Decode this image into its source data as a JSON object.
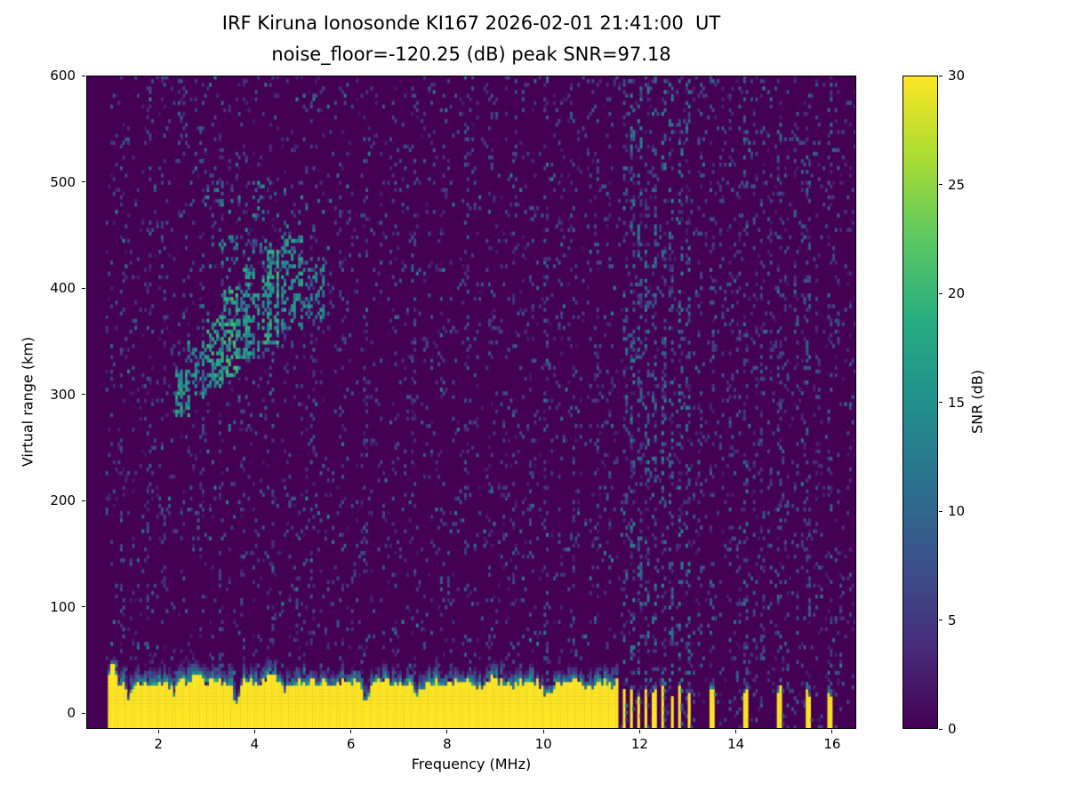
{
  "chart_data": {
    "type": "heatmap",
    "title": "IRF Kiruna Ionosonde KI167 2026-02-01 21:41:00  UT",
    "subtitle": "noise_floor=-120.25 (dB) peak SNR=97.18",
    "station": "IRF Kiruna Ionosonde KI167",
    "timestamp_ut": "2026-02-01 21:41:00",
    "noise_floor_db": -120.25,
    "peak_snr_db": 97.18,
    "xlabel": "Frequency (MHz)",
    "ylabel": "Virtual range (km)",
    "colormap": "viridis",
    "x_range": [
      0.5,
      16.5
    ],
    "y_range": [
      -15,
      600
    ],
    "x_ticks": [
      2,
      4,
      6,
      8,
      10,
      12,
      14,
      16
    ],
    "y_ticks": [
      0,
      100,
      200,
      300,
      400,
      500,
      600
    ],
    "colorbar": {
      "label": "SNR (dB)",
      "min": 0,
      "max": 30,
      "ticks": [
        0,
        5,
        10,
        15,
        20,
        25,
        30
      ]
    },
    "background_noise": {
      "speckle_probability": 0.055,
      "snr_min": 1.5,
      "snr_max": 8,
      "bright_probability": 0.007,
      "data_f_min": 0.9
    },
    "ground_pulse": {
      "f_start": 0.95,
      "f_end": 11.55,
      "base_height_km": 24,
      "height_jitter_km": 9,
      "fringe_km": 14,
      "bumps": [
        {
          "f": 1.05,
          "h": 18,
          "w": 0.06
        },
        {
          "f": 2.8,
          "h": 7,
          "w": 0.12
        },
        {
          "f": 4.35,
          "h": 5,
          "w": 0.1
        },
        {
          "f": 9.0,
          "h": 4,
          "w": 0.1
        }
      ],
      "notches": [
        {
          "f": 1.38,
          "d": 14,
          "w": 0.05
        },
        {
          "f": 2.32,
          "d": 9,
          "w": 0.05
        },
        {
          "f": 3.62,
          "d": 20,
          "w": 0.05
        },
        {
          "f": 4.62,
          "d": 8,
          "w": 0.05
        },
        {
          "f": 6.3,
          "d": 16,
          "w": 0.07
        },
        {
          "f": 7.35,
          "d": 10,
          "w": 0.06
        },
        {
          "f": 8.6,
          "d": 7,
          "w": 0.05
        },
        {
          "f": 10.1,
          "d": 11,
          "w": 0.09
        },
        {
          "f": 11.0,
          "d": 6,
          "w": 0.05
        }
      ]
    },
    "pulse_bars": [
      {
        "f": 11.68,
        "w": 0.07
      },
      {
        "f": 11.83,
        "w": 0.07
      },
      {
        "f": 11.98,
        "w": 0.07
      },
      {
        "f": 12.13,
        "w": 0.07
      },
      {
        "f": 12.3,
        "w": 0.07
      },
      {
        "f": 12.48,
        "w": 0.07
      },
      {
        "f": 12.66,
        "w": 0.07
      },
      {
        "f": 12.84,
        "w": 0.07
      },
      {
        "f": 13.02,
        "w": 0.07
      },
      {
        "f": 13.5,
        "w": 0.1
      },
      {
        "f": 14.2,
        "w": 0.1
      },
      {
        "f": 14.9,
        "w": 0.1
      },
      {
        "f": 15.52,
        "w": 0.1
      },
      {
        "f": 15.97,
        "w": 0.1
      }
    ],
    "echo_traces": [
      {
        "f0": 2.35,
        "f1": 2.65,
        "r0": 278,
        "r1": 322,
        "density": 0.5,
        "snr": 14
      },
      {
        "f0": 2.6,
        "f1": 3.0,
        "r0": 295,
        "r1": 350,
        "density": 0.42,
        "snr": 13
      },
      {
        "f0": 3.0,
        "f1": 3.35,
        "r0": 305,
        "r1": 378,
        "density": 0.5,
        "snr": 15
      },
      {
        "f0": 3.35,
        "f1": 3.68,
        "r0": 318,
        "r1": 402,
        "density": 0.55,
        "snr": 16
      },
      {
        "f0": 3.7,
        "f1": 4.12,
        "r0": 332,
        "r1": 420,
        "density": 0.45,
        "snr": 14
      },
      {
        "f0": 4.15,
        "f1": 4.52,
        "r0": 348,
        "r1": 436,
        "density": 0.5,
        "snr": 15
      },
      {
        "f0": 4.55,
        "f1": 5.0,
        "r0": 360,
        "r1": 450,
        "density": 0.38,
        "snr": 13
      },
      {
        "f0": 5.0,
        "f1": 5.45,
        "r0": 372,
        "r1": 428,
        "density": 0.32,
        "snr": 12
      },
      {
        "f0": 2.9,
        "f1": 5.1,
        "r0": 415,
        "r1": 500,
        "density": 0.1,
        "snr": 10
      },
      {
        "f0": 2.2,
        "f1": 2.5,
        "r0": 555,
        "r1": 595,
        "density": 0.12,
        "snr": 8
      }
    ],
    "interference_lines": [
      {
        "f": 1.27,
        "s": 0.25
      },
      {
        "f": 1.82,
        "s": 0.3
      },
      {
        "f": 2.08,
        "s": 0.2
      },
      {
        "f": 2.55,
        "s": 0.15
      },
      {
        "f": 2.9,
        "s": 0.25
      },
      {
        "f": 3.3,
        "s": 0.2
      },
      {
        "f": 3.75,
        "s": 0.15
      },
      {
        "f": 4.38,
        "s": 0.25
      },
      {
        "f": 4.85,
        "s": 0.15
      },
      {
        "f": 5.2,
        "s": 0.25
      },
      {
        "f": 5.78,
        "s": 0.2
      },
      {
        "f": 6.32,
        "s": 0.3
      },
      {
        "f": 6.92,
        "s": 0.2
      },
      {
        "f": 7.32,
        "s": 0.25
      },
      {
        "f": 7.92,
        "s": 0.2
      },
      {
        "f": 8.38,
        "s": 0.25
      },
      {
        "f": 8.92,
        "s": 0.2
      },
      {
        "f": 9.42,
        "s": 0.2
      },
      {
        "f": 9.75,
        "s": 0.15
      },
      {
        "f": 10.05,
        "s": 0.55
      },
      {
        "f": 10.35,
        "s": 0.2
      },
      {
        "f": 10.62,
        "s": 0.3
      },
      {
        "f": 11.12,
        "s": 0.25
      },
      {
        "f": 11.35,
        "s": 0.2
      },
      {
        "f": 11.68,
        "s": 0.6
      },
      {
        "f": 11.83,
        "s": 0.65
      },
      {
        "f": 11.98,
        "s": 0.6
      },
      {
        "f": 12.13,
        "s": 0.65
      },
      {
        "f": 12.3,
        "s": 0.6
      },
      {
        "f": 12.48,
        "s": 0.65
      },
      {
        "f": 12.66,
        "s": 0.6
      },
      {
        "f": 12.84,
        "s": 0.65
      },
      {
        "f": 13.02,
        "s": 0.6
      },
      {
        "f": 13.25,
        "s": 0.3
      },
      {
        "f": 13.5,
        "s": 0.45
      },
      {
        "f": 13.7,
        "s": 0.25
      },
      {
        "f": 13.9,
        "s": 0.3
      },
      {
        "f": 14.05,
        "s": 0.25
      },
      {
        "f": 14.2,
        "s": 0.45
      },
      {
        "f": 14.38,
        "s": 0.25
      },
      {
        "f": 14.55,
        "s": 0.3
      },
      {
        "f": 14.72,
        "s": 0.25
      },
      {
        "f": 14.9,
        "s": 0.45
      },
      {
        "f": 15.05,
        "s": 0.25
      },
      {
        "f": 15.25,
        "s": 0.3
      },
      {
        "f": 15.4,
        "s": 0.25
      },
      {
        "f": 15.52,
        "s": 0.45
      },
      {
        "f": 15.7,
        "s": 0.25
      },
      {
        "f": 15.97,
        "s": 0.4
      },
      {
        "f": 16.1,
        "s": 0.25
      }
    ]
  }
}
